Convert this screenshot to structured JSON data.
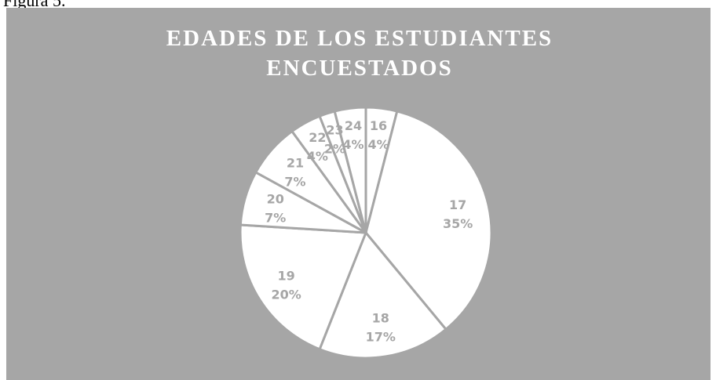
{
  "caption": "Figura 5.",
  "chart_data": {
    "type": "pie",
    "title": [
      "EDADES DE LOS ESTUDIANTES",
      "ENCUESTADOS"
    ],
    "categories": [
      "16",
      "17",
      "18",
      "19",
      "20",
      "21",
      "22",
      "23",
      "24"
    ],
    "values": [
      4,
      35,
      17,
      20,
      7,
      7,
      4,
      2,
      4
    ],
    "value_labels": [
      "4%",
      "35%",
      "17%",
      "20%",
      "7%",
      "7%",
      "4%",
      "2%",
      "4%"
    ],
    "color": "#ffffff",
    "background": "#a6a6a6"
  }
}
